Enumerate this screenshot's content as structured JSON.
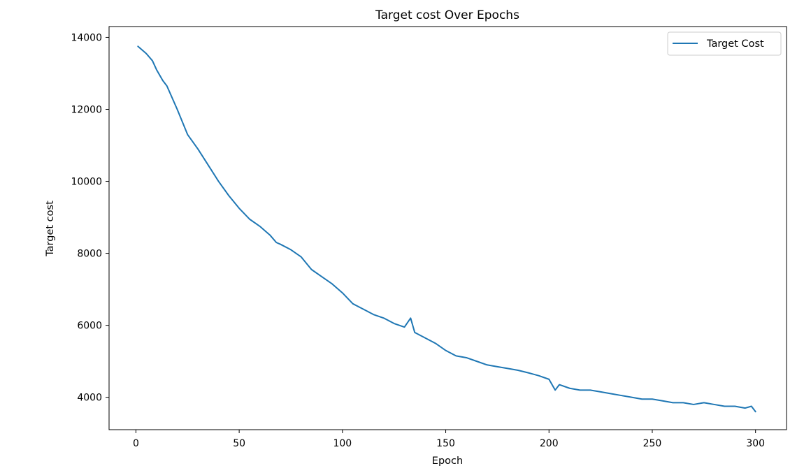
{
  "chart_data": {
    "type": "line",
    "title": "Target cost Over Epochs",
    "xlabel": "Epoch",
    "ylabel": "Target cost",
    "xlim": [
      -13,
      315
    ],
    "ylim": [
      3100,
      14300
    ],
    "x_ticks": [
      0,
      50,
      100,
      150,
      200,
      250,
      300
    ],
    "y_ticks": [
      4000,
      6000,
      8000,
      10000,
      12000,
      14000
    ],
    "grid": false,
    "legend_position": "top-right",
    "series": [
      {
        "name": "Target Cost",
        "color": "#1f77b4",
        "x": [
          1,
          5,
          8,
          10,
          13,
          15,
          20,
          25,
          30,
          35,
          40,
          45,
          50,
          55,
          60,
          65,
          68,
          70,
          75,
          80,
          85,
          90,
          95,
          100,
          105,
          110,
          115,
          120,
          125,
          130,
          133,
          135,
          140,
          145,
          150,
          155,
          160,
          165,
          170,
          175,
          180,
          185,
          190,
          195,
          200,
          203,
          205,
          210,
          215,
          220,
          225,
          230,
          235,
          240,
          245,
          250,
          255,
          260,
          265,
          270,
          275,
          280,
          285,
          290,
          295,
          298,
          300
        ],
        "y": [
          13750,
          13550,
          13350,
          13100,
          12800,
          12650,
          12000,
          11300,
          10900,
          10450,
          10000,
          9600,
          9250,
          8950,
          8750,
          8500,
          8300,
          8250,
          8100,
          7900,
          7550,
          7350,
          7150,
          6900,
          6600,
          6450,
          6300,
          6200,
          6050,
          5950,
          6200,
          5800,
          5650,
          5500,
          5300,
          5150,
          5100,
          5000,
          4900,
          4850,
          4800,
          4750,
          4680,
          4600,
          4500,
          4200,
          4350,
          4250,
          4200,
          4200,
          4150,
          4100,
          4050,
          4000,
          3950,
          3950,
          3900,
          3850,
          3850,
          3800,
          3850,
          3800,
          3750,
          3750,
          3700,
          3750,
          3600
        ]
      }
    ]
  }
}
